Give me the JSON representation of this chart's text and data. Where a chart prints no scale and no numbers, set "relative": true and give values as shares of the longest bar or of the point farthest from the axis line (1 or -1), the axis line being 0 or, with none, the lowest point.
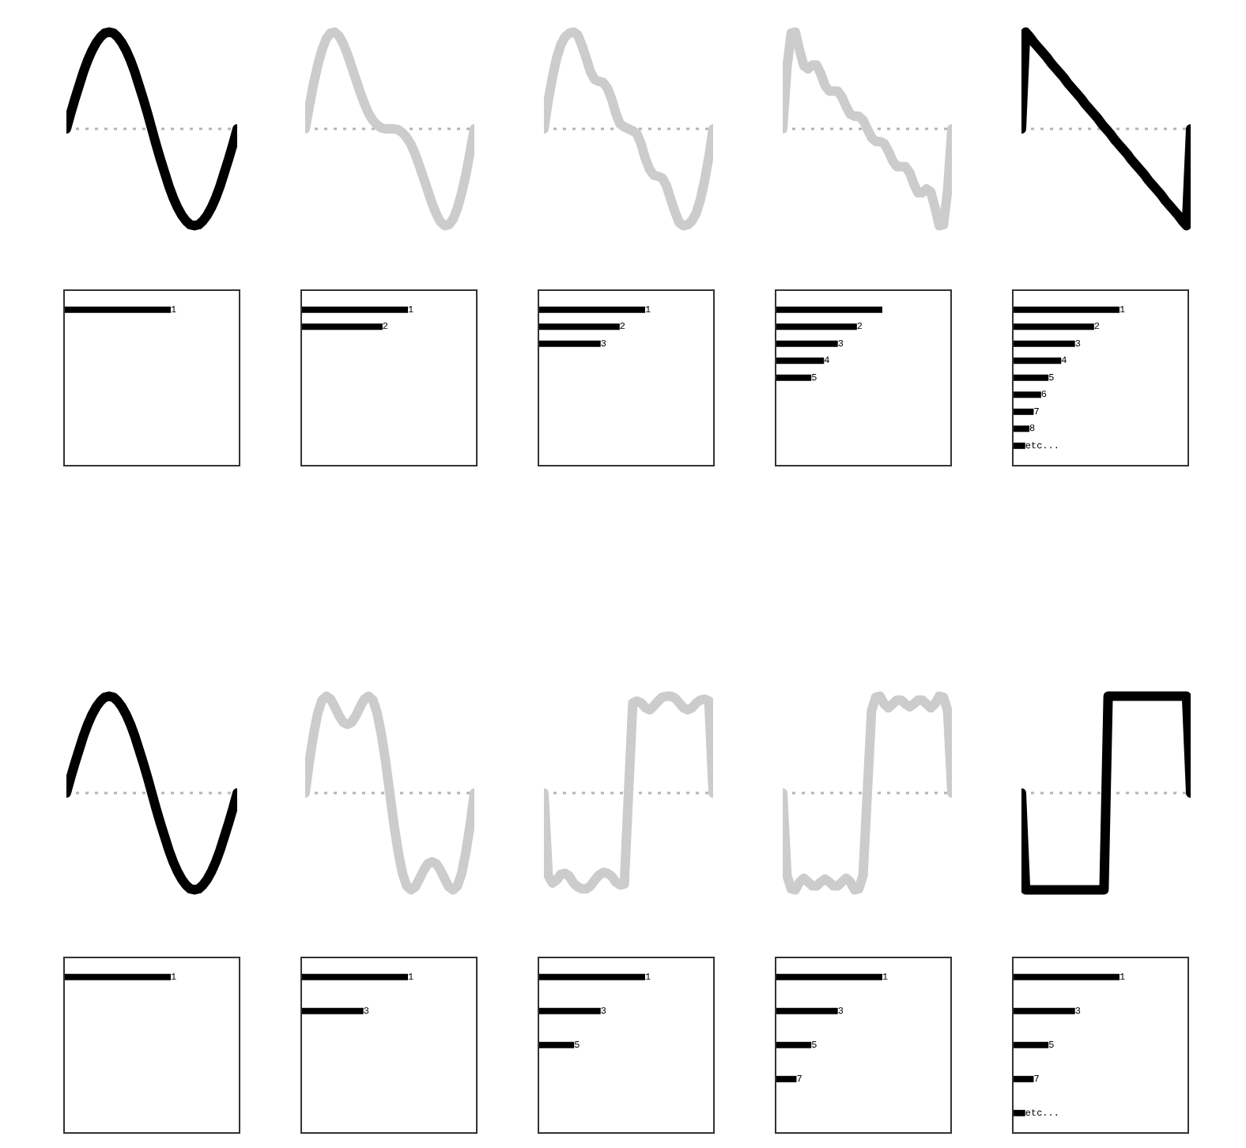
{
  "chart_data": [
    {
      "type": "line",
      "relative": true,
      "color": "#000000",
      "categories": [
        null,
        null,
        null,
        null,
        null,
        null,
        null,
        null,
        null,
        null,
        null,
        null,
        null,
        null,
        null,
        null,
        null,
        null,
        null,
        null,
        null,
        null,
        null,
        null,
        null,
        null,
        null,
        null,
        null,
        null,
        null,
        null,
        null,
        null,
        null,
        null,
        null,
        null,
        null,
        null,
        null
      ],
      "values": [
        0,
        0.16,
        0.31,
        0.45,
        0.59,
        0.71,
        0.81,
        0.89,
        0.95,
        0.99,
        1,
        0.99,
        0.95,
        0.89,
        0.81,
        0.71,
        0.59,
        0.45,
        0.31,
        0.16,
        0,
        -0.16,
        -0.31,
        -0.45,
        -0.59,
        -0.71,
        -0.81,
        -0.89,
        -0.95,
        -0.99,
        -1,
        -0.99,
        -0.95,
        -0.89,
        -0.81,
        -0.71,
        -0.59,
        -0.45,
        -0.31,
        -0.16,
        0
      ],
      "ref_lines": [
        {
          "axis": "y",
          "value": 0,
          "color": "#b4b4b4",
          "line_style": "dotted"
        }
      ]
    },
    {
      "type": "line",
      "relative": true,
      "color": "#cccccc",
      "categories": [
        null,
        null,
        null,
        null,
        null,
        null,
        null,
        null,
        null,
        null,
        null,
        null,
        null,
        null,
        null,
        null,
        null,
        null,
        null,
        null,
        null,
        null,
        null,
        null,
        null,
        null,
        null,
        null,
        null,
        null,
        null,
        null,
        null,
        null,
        null,
        null,
        null,
        null,
        null,
        null,
        null
      ],
      "values": [
        0,
        0.24,
        0.47,
        0.66,
        0.82,
        0.93,
        0.99,
        1,
        0.96,
        0.88,
        0.77,
        0.64,
        0.51,
        0.38,
        0.26,
        0.16,
        0.09,
        0.04,
        0.01,
        0,
        0,
        0,
        -0.01,
        -0.04,
        -0.09,
        -0.16,
        -0.26,
        -0.38,
        -0.51,
        -0.64,
        -0.77,
        -0.88,
        -0.96,
        -1,
        -0.99,
        -0.93,
        -0.82,
        -0.66,
        -0.47,
        -0.24,
        0
      ],
      "ref_lines": [
        {
          "axis": "y",
          "value": 0,
          "color": "#b4b4b4",
          "line_style": "dotted"
        }
      ]
    },
    {
      "type": "line",
      "relative": true,
      "color": "#cccccc",
      "categories": [
        null,
        null,
        null,
        null,
        null,
        null,
        null,
        null,
        null,
        null,
        null,
        null,
        null,
        null,
        null,
        null,
        null,
        null,
        null,
        null,
        null,
        null,
        null,
        null,
        null,
        null,
        null,
        null,
        null,
        null,
        null,
        null,
        null,
        null,
        null,
        null,
        null,
        null,
        null,
        null,
        null
      ],
      "values": [
        0,
        0.29,
        0.53,
        0.73,
        0.87,
        0.95,
        0.99,
        1,
        0.97,
        0.86,
        0.73,
        0.59,
        0.51,
        0.49,
        0.48,
        0.42,
        0.31,
        0.16,
        0.05,
        0.02,
        0,
        -0.02,
        -0.05,
        -0.16,
        -0.31,
        -0.42,
        -0.48,
        -0.49,
        -0.51,
        -0.59,
        -0.73,
        -0.86,
        -0.97,
        -1,
        -0.99,
        -0.95,
        -0.87,
        -0.73,
        -0.53,
        -0.29,
        0
      ],
      "ref_lines": [
        {
          "axis": "y",
          "value": 0,
          "color": "#b4b4b4",
          "line_style": "dotted"
        }
      ]
    },
    {
      "type": "line",
      "relative": true,
      "color": "#cccccc",
      "categories": [
        null,
        null,
        null,
        null,
        null,
        null,
        null,
        null,
        null,
        null,
        null,
        null,
        null,
        null,
        null,
        null,
        null,
        null,
        null,
        null,
        null,
        null,
        null,
        null,
        null,
        null,
        null,
        null,
        null,
        null,
        null,
        null,
        null,
        null,
        null,
        null,
        null,
        null,
        null,
        null,
        null
      ],
      "values": [
        0,
        0.63,
        0.99,
        1,
        0.81,
        0.65,
        0.62,
        0.66,
        0.66,
        0.57,
        0.45,
        0.39,
        0.39,
        0.39,
        0.33,
        0.23,
        0.15,
        0.13,
        0.13,
        0.09,
        0,
        -0.09,
        -0.13,
        -0.13,
        -0.15,
        -0.23,
        -0.33,
        -0.39,
        -0.39,
        -0.39,
        -0.45,
        -0.57,
        -0.66,
        -0.66,
        -0.62,
        -0.65,
        -0.81,
        -1,
        -0.99,
        -0.63,
        0
      ],
      "ref_lines": [
        {
          "axis": "y",
          "value": 0,
          "color": "#b4b4b4",
          "line_style": "dotted"
        }
      ]
    },
    {
      "type": "line",
      "relative": true,
      "color": "#000000",
      "categories": [
        null,
        null,
        null,
        null,
        null,
        null,
        null,
        null,
        null,
        null,
        null,
        null,
        null,
        null,
        null,
        null,
        null,
        null,
        null,
        null,
        null,
        null,
        null,
        null,
        null,
        null,
        null,
        null,
        null,
        null,
        null,
        null,
        null,
        null,
        null,
        null,
        null,
        null,
        null,
        null,
        null
      ],
      "values": [
        0,
        1,
        0.95,
        0.89,
        0.84,
        0.79,
        0.74,
        0.68,
        0.63,
        0.58,
        0.53,
        0.47,
        0.42,
        0.37,
        0.32,
        0.26,
        0.21,
        0.16,
        0.11,
        0.05,
        0,
        -0.05,
        -0.11,
        -0.16,
        -0.21,
        -0.26,
        -0.32,
        -0.37,
        -0.42,
        -0.47,
        -0.53,
        -0.58,
        -0.63,
        -0.68,
        -0.74,
        -0.79,
        -0.84,
        -0.89,
        -0.95,
        -1,
        0
      ],
      "ref_lines": [
        {
          "axis": "y",
          "value": 0,
          "color": "#b4b4b4",
          "line_style": "dotted"
        }
      ]
    },
    {
      "type": "bar",
      "orientation": "horizontal",
      "relative": true,
      "color": "#000000",
      "categories": [
        "1"
      ],
      "values": [
        1
      ]
    },
    {
      "type": "bar",
      "orientation": "horizontal",
      "relative": true,
      "color": "#000000",
      "categories": [
        "1",
        "2"
      ],
      "values": [
        1,
        0.76
      ]
    },
    {
      "type": "bar",
      "orientation": "horizontal",
      "relative": true,
      "color": "#000000",
      "categories": [
        "1",
        "2",
        "3"
      ],
      "values": [
        1,
        0.76,
        0.58
      ]
    },
    {
      "type": "bar",
      "orientation": "horizontal",
      "relative": true,
      "color": "#000000",
      "categories": [
        null,
        "2",
        "3",
        "4",
        "5"
      ],
      "values": [
        1,
        0.76,
        0.58,
        0.45,
        0.33
      ]
    },
    {
      "type": "bar",
      "orientation": "horizontal",
      "relative": true,
      "color": "#000000",
      "categories": [
        "1",
        "2",
        "3",
        "4",
        "5",
        "6",
        "7",
        "8",
        "etc..."
      ],
      "values": [
        1,
        0.76,
        0.58,
        0.45,
        0.33,
        0.26,
        0.19,
        0.15,
        0.11
      ]
    },
    {
      "type": "line",
      "relative": true,
      "color": "#000000",
      "categories": [
        null,
        null,
        null,
        null,
        null,
        null,
        null,
        null,
        null,
        null,
        null,
        null,
        null,
        null,
        null,
        null,
        null,
        null,
        null,
        null,
        null,
        null,
        null,
        null,
        null,
        null,
        null,
        null,
        null,
        null,
        null,
        null,
        null,
        null,
        null,
        null,
        null,
        null,
        null,
        null,
        null
      ],
      "values": [
        0,
        0.16,
        0.31,
        0.45,
        0.59,
        0.71,
        0.81,
        0.89,
        0.95,
        0.99,
        1,
        0.99,
        0.95,
        0.89,
        0.81,
        0.71,
        0.59,
        0.45,
        0.31,
        0.16,
        0,
        -0.16,
        -0.31,
        -0.45,
        -0.59,
        -0.71,
        -0.81,
        -0.89,
        -0.95,
        -0.99,
        -1,
        -0.99,
        -0.95,
        -0.89,
        -0.81,
        -0.71,
        -0.59,
        -0.45,
        -0.31,
        -0.16,
        0
      ],
      "ref_lines": [
        {
          "axis": "y",
          "value": 0,
          "color": "#b4b4b4",
          "line_style": "dotted"
        }
      ]
    },
    {
      "type": "line",
      "relative": true,
      "color": "#cccccc",
      "categories": [
        null,
        null,
        null,
        null,
        null,
        null,
        null,
        null,
        null,
        null,
        null,
        null,
        null,
        null,
        null,
        null,
        null,
        null,
        null,
        null,
        null,
        null,
        null,
        null,
        null,
        null,
        null,
        null,
        null,
        null,
        null,
        null,
        null,
        null,
        null,
        null,
        null,
        null,
        null,
        null,
        null
      ],
      "values": [
        0,
        0.33,
        0.61,
        0.83,
        0.96,
        1,
        0.97,
        0.89,
        0.8,
        0.73,
        0.71,
        0.73,
        0.8,
        0.89,
        0.97,
        1,
        0.96,
        0.83,
        0.61,
        0.33,
        0,
        -0.33,
        -0.61,
        -0.83,
        -0.96,
        -1,
        -0.97,
        -0.89,
        -0.8,
        -0.73,
        -0.71,
        -0.73,
        -0.8,
        -0.89,
        -0.97,
        -1,
        -0.96,
        -0.83,
        -0.61,
        -0.33,
        0
      ],
      "ref_lines": [
        {
          "axis": "y",
          "value": 0,
          "color": "#b4b4b4",
          "line_style": "dotted"
        }
      ]
    },
    {
      "type": "line",
      "relative": true,
      "color": "#cccccc",
      "categories": [
        null,
        null,
        null,
        null,
        null,
        null,
        null,
        null,
        null,
        null,
        null,
        null,
        null,
        null,
        null,
        null,
        null,
        null,
        null,
        null,
        null,
        null,
        null,
        null,
        null,
        null,
        null,
        null,
        null,
        null,
        null,
        null,
        null,
        null,
        null,
        null,
        null,
        null,
        null,
        null,
        null
      ],
      "values": [
        0,
        -0.85,
        -0.93,
        -0.9,
        -0.84,
        -0.83,
        -0.86,
        -0.93,
        -0.97,
        -0.99,
        -0.99,
        -0.96,
        -0.9,
        -0.85,
        -0.82,
        -0.83,
        -0.86,
        -0.92,
        -0.95,
        -0.94,
        0,
        0.93,
        0.95,
        0.93,
        0.88,
        0.86,
        0.9,
        0.95,
        0.99,
        1,
        1,
        0.98,
        0.93,
        0.88,
        0.86,
        0.88,
        0.93,
        0.96,
        0.97,
        0.95,
        0
      ],
      "ref_lines": [
        {
          "axis": "y",
          "value": 0,
          "color": "#b4b4b4",
          "line_style": "dotted"
        }
      ]
    },
    {
      "type": "line",
      "relative": true,
      "color": "#cccccc",
      "categories": [
        null,
        null,
        null,
        null,
        null,
        null,
        null,
        null,
        null,
        null,
        null,
        null,
        null,
        null,
        null,
        null,
        null,
        null,
        null,
        null,
        null,
        null,
        null,
        null,
        null,
        null,
        null,
        null,
        null,
        null,
        null,
        null,
        null,
        null,
        null,
        null,
        null,
        null,
        null,
        null,
        null
      ],
      "values": [
        0,
        -0.85,
        -0.99,
        -1,
        -0.92,
        -0.88,
        -0.92,
        -0.96,
        -0.96,
        -0.92,
        -0.89,
        -0.92,
        -0.96,
        -0.96,
        -0.92,
        -0.88,
        -0.92,
        -1,
        -0.99,
        -0.85,
        0,
        0.85,
        0.99,
        1,
        0.92,
        0.88,
        0.92,
        0.96,
        0.96,
        0.92,
        0.89,
        0.92,
        0.96,
        0.96,
        0.92,
        0.88,
        0.92,
        1,
        0.99,
        0.85,
        0
      ],
      "ref_lines": [
        {
          "axis": "y",
          "value": 0,
          "color": "#b4b4b4",
          "line_style": "dotted"
        }
      ]
    },
    {
      "type": "line",
      "relative": true,
      "color": "#000000",
      "categories": [
        null,
        null,
        null,
        null,
        null,
        null,
        null,
        null,
        null,
        null,
        null,
        null,
        null,
        null,
        null,
        null,
        null,
        null,
        null,
        null,
        null,
        null,
        null,
        null,
        null,
        null,
        null,
        null,
        null,
        null,
        null,
        null,
        null,
        null,
        null,
        null,
        null,
        null,
        null,
        null,
        null,
        null
      ],
      "values": [
        0,
        -1,
        -1,
        -1,
        -1,
        -1,
        -1,
        -1,
        -1,
        -1,
        -1,
        -1,
        -1,
        -1,
        -1,
        -1,
        -1,
        -1,
        -1,
        -1,
        -1,
        1,
        1,
        1,
        1,
        1,
        1,
        1,
        1,
        1,
        1,
        1,
        1,
        1,
        1,
        1,
        1,
        1,
        1,
        1,
        1,
        0
      ],
      "ref_lines": [
        {
          "axis": "y",
          "value": 0,
          "color": "#b4b4b4",
          "line_style": "dotted"
        }
      ]
    },
    {
      "type": "bar",
      "orientation": "horizontal",
      "relative": true,
      "color": "#000000",
      "categories": [
        "1"
      ],
      "values": [
        1
      ]
    },
    {
      "type": "bar",
      "orientation": "horizontal",
      "relative": true,
      "color": "#000000",
      "categories": [
        "1",
        "3"
      ],
      "values": [
        1,
        0.58
      ]
    },
    {
      "type": "bar",
      "orientation": "horizontal",
      "relative": true,
      "color": "#000000",
      "categories": [
        "1",
        "3",
        "5"
      ],
      "values": [
        1,
        0.58,
        0.33
      ]
    },
    {
      "type": "bar",
      "orientation": "horizontal",
      "relative": true,
      "color": "#000000",
      "categories": [
        "1",
        "3",
        "5",
        "7"
      ],
      "values": [
        1,
        0.58,
        0.33,
        0.19
      ]
    },
    {
      "type": "bar",
      "orientation": "horizontal",
      "relative": true,
      "color": "#000000",
      "categories": [
        "1",
        "3",
        "5",
        "7",
        "etc..."
      ],
      "values": [
        1,
        0.58,
        0.33,
        0.19,
        0.11
      ]
    }
  ]
}
